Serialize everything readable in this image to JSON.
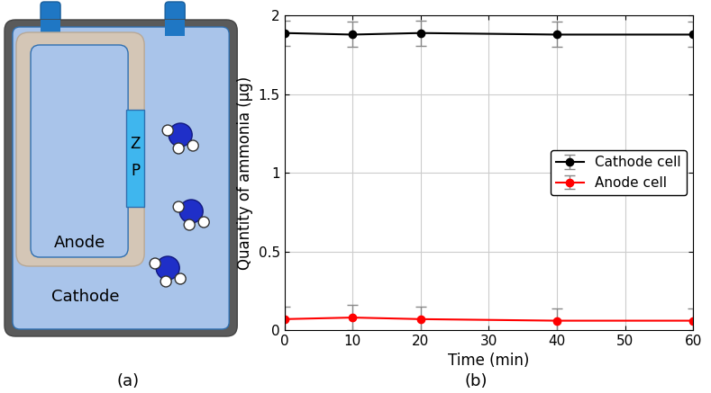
{
  "diagram": {
    "caption": "(a)",
    "labels": {
      "anode": "Anode",
      "cathode": "Cathode",
      "membrane": [
        "Z",
        "P"
      ]
    }
  },
  "chart_data": {
    "type": "line",
    "caption": "(b)",
    "x_label": "Time (min)",
    "y_label": "Quantity of ammonia (μg)",
    "x": [
      0,
      10,
      20,
      40,
      60
    ],
    "series": [
      {
        "name": "Cathode cell",
        "color": "#000000",
        "marker": "o",
        "values": [
          1.89,
          1.88,
          1.89,
          1.88,
          1.88
        ],
        "errors": [
          0.08,
          0.08,
          0.08,
          0.08,
          0.08
        ]
      },
      {
        "name": "Anode cell",
        "color": "#ff0000",
        "marker": "o",
        "values": [
          0.07,
          0.08,
          0.07,
          0.06,
          0.06
        ],
        "errors": [
          0.08,
          0.08,
          0.08,
          0.08,
          0.08
        ]
      }
    ],
    "xlim": [
      0,
      60
    ],
    "xticks": [
      0,
      10,
      20,
      30,
      40,
      50,
      60
    ],
    "ylim": [
      0,
      2
    ],
    "yticks": [
      0,
      0.5,
      1,
      1.5,
      2
    ],
    "grid": true,
    "legend": "center right"
  }
}
